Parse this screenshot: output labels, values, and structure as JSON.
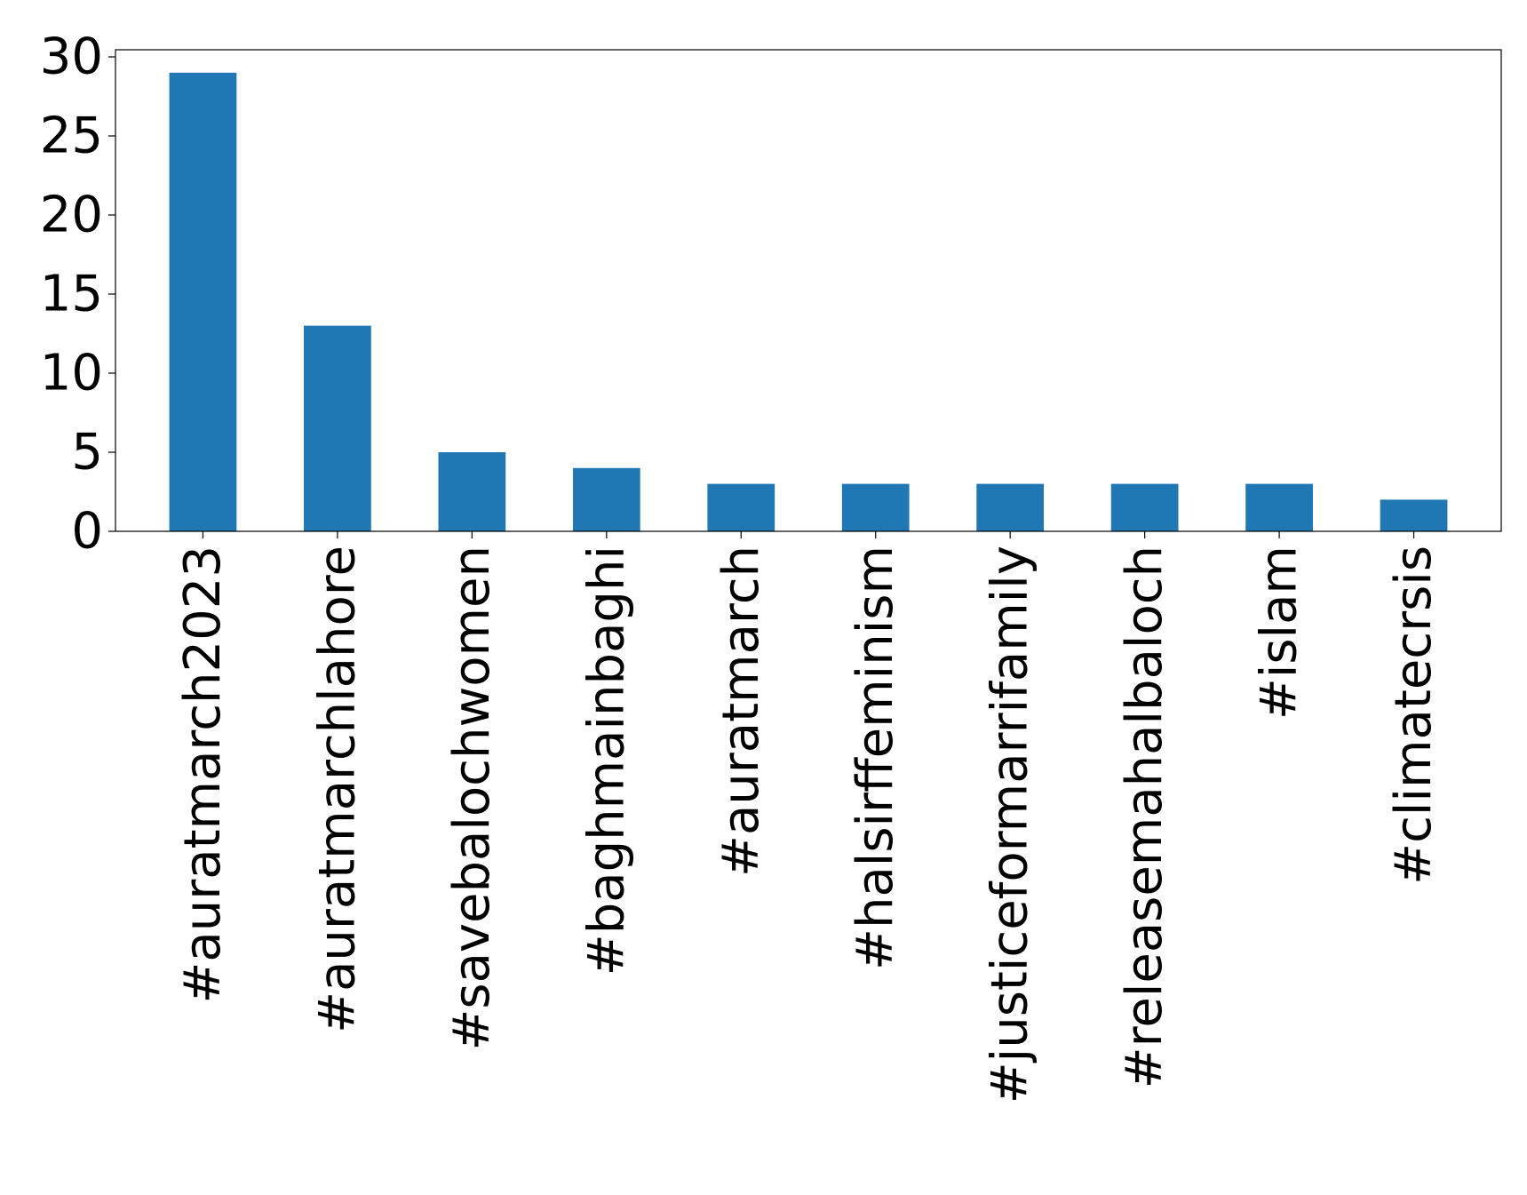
{
  "chart_data": {
    "type": "bar",
    "categories": [
      "#auratmarch2023",
      "#auratmarchlahore",
      "#savebalochwomen",
      "#baghmainbaghi",
      "#auratmarch",
      "#halsirffeminism",
      "#justiceformarrifamily",
      "#releasemahalbaloch",
      "#islam",
      "#climatecrsis"
    ],
    "values": [
      29,
      13,
      5,
      4,
      3,
      3,
      3,
      3,
      3,
      2
    ],
    "title": "",
    "xlabel": "",
    "ylabel": "",
    "ylim": [
      0,
      30.45
    ],
    "yticks": [
      0,
      5,
      10,
      15,
      20,
      25,
      30
    ],
    "grid": false,
    "legend": "none",
    "bar_color": "#1f77b4"
  }
}
